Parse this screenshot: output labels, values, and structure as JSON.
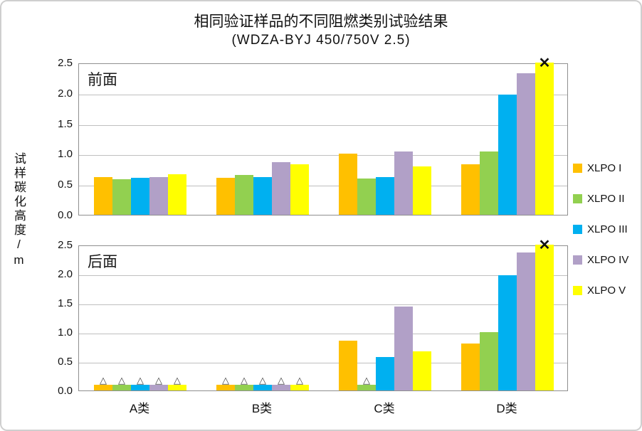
{
  "chart_data": {
    "type": "bar",
    "title": "相同验证样品的不同阻燃类别试验结果",
    "subtitle": "(WDZA-BYJ 450/750V 2.5)",
    "ylabel": "试样碳化高度/m",
    "ylim": [
      0,
      2.5
    ],
    "yticks": [
      "0.0",
      "0.5",
      "1.0",
      "1.5",
      "2.0",
      "2.5"
    ],
    "grid": true,
    "legend_position": "right",
    "categories": [
      "A类",
      "B类",
      "C类",
      "D类"
    ],
    "legend": [
      {
        "name": "XLPO I",
        "color": "#FFC000"
      },
      {
        "name": "XLPO II",
        "color": "#92D050"
      },
      {
        "name": "XLPO III",
        "color": "#00B0F0"
      },
      {
        "name": "XLPO IV",
        "color": "#B1A0C7"
      },
      {
        "name": "XLPO V",
        "color": "#FFFF00"
      }
    ],
    "markers": {
      "triangle_glyph": "△",
      "x_over_glyph": "✕"
    },
    "panels": [
      {
        "label": "前面",
        "series": [
          {
            "name": "XLPO I",
            "values": [
              0.62,
              0.61,
              1.0,
              0.83
            ]
          },
          {
            "name": "XLPO II",
            "values": [
              0.59,
              0.65,
              0.6,
              1.04
            ]
          },
          {
            "name": "XLPO III",
            "values": [
              0.61,
              0.62,
              0.62,
              1.97
            ]
          },
          {
            "name": "XLPO IV",
            "values": [
              0.62,
              0.87,
              1.04,
              2.33
            ]
          },
          {
            "name": "XLPO V",
            "values": [
              0.67,
              0.83,
              0.79,
              2.5
            ]
          }
        ],
        "triangle_marks": [],
        "x_over_marks": [
          {
            "category": "D类",
            "series": "XLPO V"
          }
        ]
      },
      {
        "label": "后面",
        "series": [
          {
            "name": "XLPO I",
            "values": [
              0.1,
              0.1,
              0.85,
              0.8
            ]
          },
          {
            "name": "XLPO II",
            "values": [
              0.1,
              0.1,
              0.1,
              1.0
            ]
          },
          {
            "name": "XLPO III",
            "values": [
              0.1,
              0.1,
              0.57,
              1.97
            ]
          },
          {
            "name": "XLPO IV",
            "values": [
              0.1,
              0.1,
              1.44,
              2.36
            ]
          },
          {
            "name": "XLPO V",
            "values": [
              0.1,
              0.1,
              0.67,
              2.5
            ]
          }
        ],
        "triangle_marks": [
          {
            "category": "A类",
            "series": [
              "XLPO I",
              "XLPO II",
              "XLPO III",
              "XLPO IV",
              "XLPO V"
            ]
          },
          {
            "category": "B类",
            "series": [
              "XLPO I",
              "XLPO II",
              "XLPO III",
              "XLPO IV",
              "XLPO V"
            ]
          },
          {
            "category": "C类",
            "series": [
              "XLPO II"
            ]
          }
        ],
        "x_over_marks": [
          {
            "category": "D类",
            "series": "XLPO V"
          }
        ]
      }
    ]
  }
}
